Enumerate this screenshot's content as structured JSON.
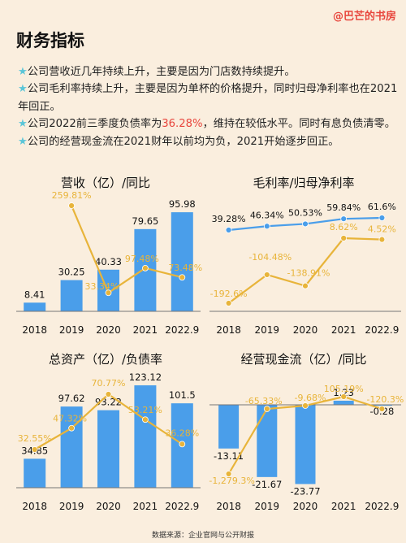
{
  "watermark": "@巴芒的书房",
  "page_title": "财务指标",
  "bullets": [
    {
      "text": "公司营收近几年持续上升，主要是因为门店数持续提升。"
    },
    {
      "text": "公司毛利率持续上升，主要是因为单杯的价格提升，同时归母净利率也在2021年回正。"
    },
    {
      "pre": "公司2022前三季度负债率为",
      "highlight": "36.28%",
      "post": "，维持在较低水平。同时有息负债清零。"
    },
    {
      "text": "公司的经营现金流在2021财年以前均为负，2021开始逐步回正。"
    }
  ],
  "star": "★",
  "source": "数据来源：企业官网与公开财报",
  "colors": {
    "bar": "#4a9eea",
    "line_gold": "#e8b43a",
    "line_blue": "#4a9eea",
    "bar_label": "#111",
    "pct_label": "#e8b43a",
    "background": "#faeede"
  },
  "chart_data": [
    {
      "type": "bar+line",
      "title": "营收（亿）/同比",
      "categories": [
        "2018",
        "2019",
        "2020",
        "2021",
        "2022.9"
      ],
      "bars": {
        "values": [
          8.41,
          30.25,
          40.33,
          79.65,
          95.98
        ],
        "labels": [
          "8.41",
          "30.25",
          "40.33",
          "79.65",
          "95.98"
        ]
      },
      "line": {
        "values": [
          null,
          259.81,
          33.34,
          97.48,
          73.48
        ],
        "labels": [
          "",
          "259.81%",
          "33.34%",
          "97.48%",
          "73.48%"
        ]
      }
    },
    {
      "type": "line",
      "title": "毛利率/归母净利率",
      "categories": [
        "2018",
        "2019",
        "2020",
        "2021",
        "2022.9"
      ],
      "series": [
        {
          "values": [
            39.28,
            46.34,
            50.53,
            59.84,
            61.6
          ],
          "labels": [
            "39.28%",
            "46.34%",
            "50.53%",
            "59.84%",
            "61.6%"
          ]
        },
        {
          "values": [
            -192.6,
            -104.48,
            -138.91,
            8.62,
            4.52
          ],
          "labels": [
            "-192.6%",
            "-104.48%",
            "-138.91%",
            "8.62%",
            "4.52%"
          ]
        }
      ]
    },
    {
      "type": "bar+line",
      "title": "总资产（亿）/负债率",
      "categories": [
        "2018",
        "2019",
        "2020",
        "2021",
        "2022.9"
      ],
      "bars": {
        "values": [
          34.85,
          97.62,
          93.22,
          123.12,
          101.5
        ],
        "labels": [
          "34.85",
          "97.62",
          "93.22",
          "123.12",
          "101.5"
        ]
      },
      "line": {
        "values": [
          32.55,
          47.32,
          70.77,
          53.21,
          36.28
        ],
        "labels": [
          "32.55%",
          "47.32%",
          "70.77%",
          "53.21%",
          "36.28%"
        ]
      }
    },
    {
      "type": "bar+line",
      "title": "经营现金流（亿）/同比",
      "categories": [
        "2018",
        "2019",
        "2020",
        "2021",
        "2022.9"
      ],
      "bars": {
        "values": [
          -13.11,
          -21.67,
          -23.77,
          1.23,
          -0.28
        ],
        "labels": [
          "-13.11",
          "-21.67",
          "-23.77",
          "1.23",
          "-0.28"
        ]
      },
      "line": {
        "values": [
          -1279.3,
          -65.33,
          -9.68,
          105.19,
          -120.3
        ],
        "labels": [
          "-1,279.3%",
          "-65.33%",
          "-9.68%",
          "105.19%",
          "-120.3%"
        ]
      }
    }
  ]
}
